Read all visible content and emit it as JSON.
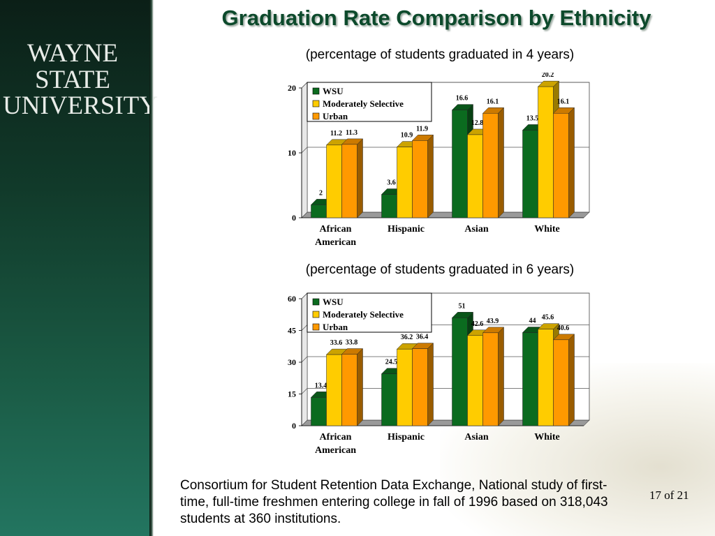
{
  "slide": {
    "title": "Graduation Rate Comparison by Ethnicity",
    "logo_line1": "WAYNE STATE",
    "logo_line2": "UNIVERSITY",
    "page_number": "17 of 21",
    "source_note": "Consortium for Student Retention Data Exchange, National study of first-time, full-time freshmen entering college in fall of 1996 based on 318,043 students at 360 institutions.",
    "colors": {
      "title": "#0d4a2c",
      "sidebar": "#113a2a"
    }
  },
  "chart_data": [
    {
      "type": "bar",
      "subtitle": "(percentage of students graduated in 4 years)",
      "categories": [
        [
          "African",
          "American"
        ],
        [
          "Hispanic"
        ],
        [
          "Asian"
        ],
        [
          "White"
        ]
      ],
      "series": [
        {
          "name": "WSU",
          "values": [
            2,
            3.6,
            16.6,
            13.5
          ],
          "labels": [
            "2",
            "3.6",
            "16.6",
            "13.5"
          ],
          "color": "#0b6b1f"
        },
        {
          "name": "Moderately Selective",
          "values": [
            11.2,
            10.9,
            12.8,
            20.2
          ],
          "labels": [
            "11.2",
            "10.9",
            "12.8",
            "20.2"
          ],
          "color": "#ffcc00"
        },
        {
          "name": "Urban",
          "values": [
            11.3,
            11.9,
            16.1,
            16.1
          ],
          "labels": [
            "11.3",
            "11.9",
            "16.1",
            "16.1"
          ],
          "color": "#ff9900"
        }
      ],
      "yticks": [
        "0",
        "10",
        "20"
      ],
      "ylim": [
        0,
        20
      ],
      "grid": true,
      "legend": "top-left"
    },
    {
      "type": "bar",
      "subtitle": "(percentage of students graduated in 6 years)",
      "categories": [
        [
          "African",
          "American"
        ],
        [
          "Hispanic"
        ],
        [
          "Asian"
        ],
        [
          "White"
        ]
      ],
      "series": [
        {
          "name": "WSU",
          "values": [
            13.4,
            24.5,
            51,
            44
          ],
          "labels": [
            "13.4",
            "24.5",
            "51",
            "44"
          ],
          "color": "#0b6b1f"
        },
        {
          "name": "Moderately Selective",
          "values": [
            33.6,
            36.2,
            42.6,
            45.6
          ],
          "labels": [
            "33.6",
            "36.2",
            "42.6",
            "45.6"
          ],
          "color": "#ffcc00"
        },
        {
          "name": "Urban",
          "values": [
            33.8,
            36.4,
            43.9,
            40.6
          ],
          "labels": [
            "33.8",
            "36.4",
            "43.9",
            "40.6"
          ],
          "color": "#ff9900"
        }
      ],
      "yticks": [
        "0",
        "15",
        "30",
        "45",
        "60"
      ],
      "ylim": [
        0,
        60
      ],
      "grid": true,
      "legend": "top-left"
    }
  ]
}
